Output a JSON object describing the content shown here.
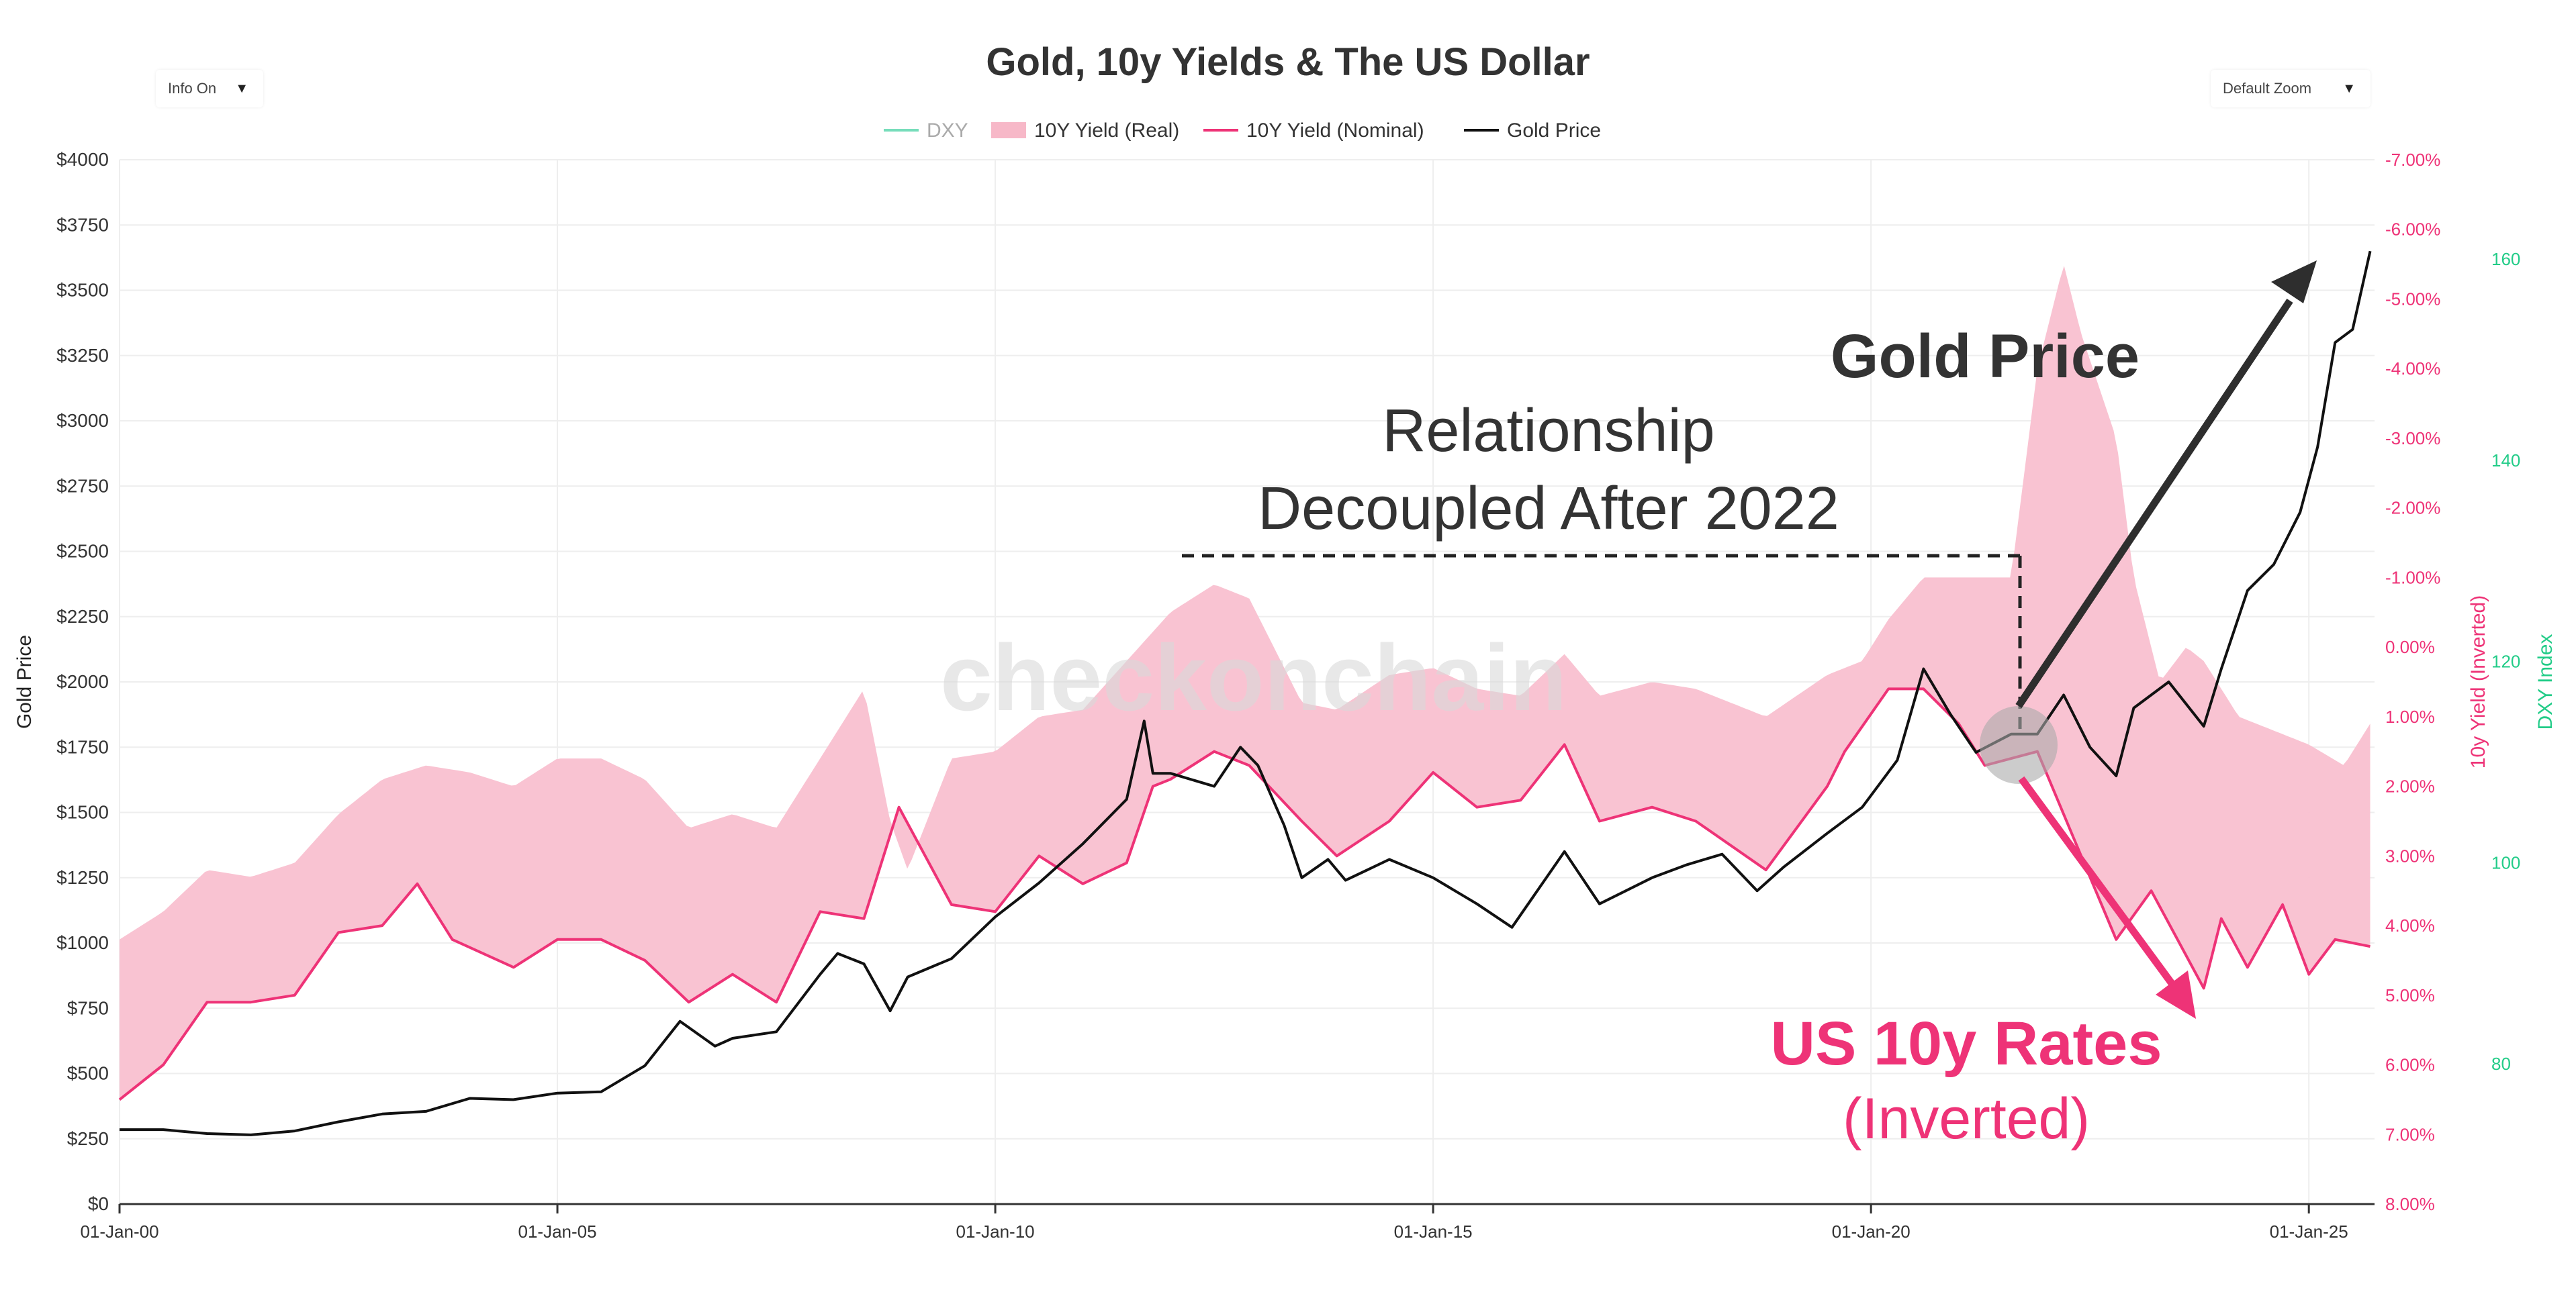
{
  "chart_data": {
    "type": "line",
    "title": "Gold, 10y Yields & The US Dollar",
    "controls": {
      "info_label": "Info On",
      "zoom_label": "Default Zoom"
    },
    "legend": {
      "placement": "top-center",
      "items": [
        {
          "name": "DXY",
          "color": "#77ddbb",
          "style": "line"
        },
        {
          "name": "10Y Yield (Real)",
          "color": "#f7b8c8",
          "style": "area"
        },
        {
          "name": "10Y Yield (Nominal)",
          "color": "#ee3377",
          "style": "line"
        },
        {
          "name": "Gold Price",
          "color": "#111111",
          "style": "line"
        }
      ]
    },
    "watermark": "checkonchain",
    "axes": {
      "x": {
        "ticks": [
          "01-Jan-00",
          "01-Jan-05",
          "01-Jan-10",
          "01-Jan-15",
          "01-Jan-20",
          "01-Jan-25"
        ],
        "tick_years": [
          2000,
          2005,
          2010,
          2015,
          2020,
          2025
        ],
        "range": [
          2000.0,
          2025.75
        ]
      },
      "y_left": {
        "label": "Gold Price",
        "range": [
          0,
          4000
        ],
        "ticks": [
          "$0",
          "$250",
          "$500",
          "$750",
          "$1000",
          "$1250",
          "$1500",
          "$1750",
          "$2000",
          "$2250",
          "$2500",
          "$2750",
          "$3000",
          "$3250",
          "$3500",
          "$3750",
          "$4000"
        ]
      },
      "y_right1": {
        "label": "10y Yield (Inverted)",
        "range": [
          8.0,
          -7.0
        ],
        "inverted": true,
        "ticks": [
          "8.00%",
          "7.00%",
          "6.00%",
          "5.00%",
          "4.00%",
          "3.00%",
          "2.00%",
          "1.00%",
          "0.00%",
          "-1.00%",
          "-2.00%",
          "-3.00%",
          "-4.00%",
          "-5.00%",
          "-6.00%",
          "-7.00%"
        ]
      },
      "y_right2": {
        "label": "DXY Index",
        "tick_values": [
          80,
          100,
          120,
          140,
          160
        ],
        "ticks": [
          "80",
          "100",
          "120",
          "140",
          "160"
        ]
      }
    },
    "series": [
      {
        "name": "Gold Price",
        "axis": "y_left",
        "points": [
          [
            2000.0,
            285
          ],
          [
            2000.5,
            285
          ],
          [
            2001.0,
            270
          ],
          [
            2001.5,
            265
          ],
          [
            2002.0,
            280
          ],
          [
            2002.5,
            315
          ],
          [
            2003.0,
            345
          ],
          [
            2003.5,
            355
          ],
          [
            2004.0,
            405
          ],
          [
            2004.5,
            400
          ],
          [
            2005.0,
            425
          ],
          [
            2005.5,
            430
          ],
          [
            2006.0,
            530
          ],
          [
            2006.4,
            700
          ],
          [
            2006.8,
            605
          ],
          [
            2007.0,
            635
          ],
          [
            2007.5,
            660
          ],
          [
            2008.0,
            880
          ],
          [
            2008.2,
            960
          ],
          [
            2008.5,
            920
          ],
          [
            2008.8,
            740
          ],
          [
            2009.0,
            870
          ],
          [
            2009.5,
            940
          ],
          [
            2010.0,
            1100
          ],
          [
            2010.5,
            1230
          ],
          [
            2011.0,
            1380
          ],
          [
            2011.5,
            1550
          ],
          [
            2011.7,
            1850
          ],
          [
            2011.8,
            1650
          ],
          [
            2012.0,
            1650
          ],
          [
            2012.5,
            1600
          ],
          [
            2012.8,
            1750
          ],
          [
            2013.0,
            1680
          ],
          [
            2013.3,
            1450
          ],
          [
            2013.5,
            1250
          ],
          [
            2013.8,
            1320
          ],
          [
            2014.0,
            1240
          ],
          [
            2014.5,
            1320
          ],
          [
            2015.0,
            1250
          ],
          [
            2015.5,
            1150
          ],
          [
            2015.9,
            1060
          ],
          [
            2016.5,
            1350
          ],
          [
            2016.9,
            1150
          ],
          [
            2017.5,
            1250
          ],
          [
            2017.9,
            1300
          ],
          [
            2018.3,
            1340
          ],
          [
            2018.7,
            1200
          ],
          [
            2019.0,
            1290
          ],
          [
            2019.5,
            1420
          ],
          [
            2019.9,
            1520
          ],
          [
            2020.3,
            1700
          ],
          [
            2020.6,
            2050
          ],
          [
            2020.9,
            1880
          ],
          [
            2021.2,
            1730
          ],
          [
            2021.6,
            1800
          ],
          [
            2021.9,
            1800
          ],
          [
            2022.2,
            1950
          ],
          [
            2022.5,
            1750
          ],
          [
            2022.8,
            1640
          ],
          [
            2023.0,
            1900
          ],
          [
            2023.4,
            2000
          ],
          [
            2023.8,
            1830
          ],
          [
            2024.0,
            2050
          ],
          [
            2024.3,
            2350
          ],
          [
            2024.6,
            2450
          ],
          [
            2024.9,
            2650
          ],
          [
            2025.1,
            2900
          ],
          [
            2025.3,
            3300
          ],
          [
            2025.5,
            3350
          ],
          [
            2025.7,
            3650
          ]
        ]
      },
      {
        "name": "10Y Yield (Nominal)",
        "axis": "y_right1",
        "points": [
          [
            2000.0,
            6.5
          ],
          [
            2000.5,
            6.0
          ],
          [
            2001.0,
            5.1
          ],
          [
            2001.5,
            5.1
          ],
          [
            2002.0,
            5.0
          ],
          [
            2002.5,
            4.1
          ],
          [
            2003.0,
            4.0
          ],
          [
            2003.4,
            3.4
          ],
          [
            2003.8,
            4.2
          ],
          [
            2004.5,
            4.6
          ],
          [
            2005.0,
            4.2
          ],
          [
            2005.5,
            4.2
          ],
          [
            2006.0,
            4.5
          ],
          [
            2006.5,
            5.1
          ],
          [
            2007.0,
            4.7
          ],
          [
            2007.5,
            5.1
          ],
          [
            2008.0,
            3.8
          ],
          [
            2008.5,
            3.9
          ],
          [
            2008.9,
            2.3
          ],
          [
            2009.5,
            3.7
          ],
          [
            2010.0,
            3.8
          ],
          [
            2010.5,
            3.0
          ],
          [
            2011.0,
            3.4
          ],
          [
            2011.5,
            3.1
          ],
          [
            2011.8,
            2.0
          ],
          [
            2012.0,
            1.9
          ],
          [
            2012.5,
            1.5
          ],
          [
            2012.9,
            1.7
          ],
          [
            2013.5,
            2.5
          ],
          [
            2013.9,
            3.0
          ],
          [
            2014.5,
            2.5
          ],
          [
            2015.0,
            1.8
          ],
          [
            2015.5,
            2.3
          ],
          [
            2016.0,
            2.2
          ],
          [
            2016.5,
            1.4
          ],
          [
            2016.9,
            2.5
          ],
          [
            2017.5,
            2.3
          ],
          [
            2018.0,
            2.5
          ],
          [
            2018.8,
            3.2
          ],
          [
            2019.5,
            2.0
          ],
          [
            2019.7,
            1.5
          ],
          [
            2020.2,
            0.6
          ],
          [
            2020.6,
            0.6
          ],
          [
            2021.0,
            1.1
          ],
          [
            2021.3,
            1.7
          ],
          [
            2021.9,
            1.5
          ],
          [
            2022.4,
            3.0
          ],
          [
            2022.8,
            4.2
          ],
          [
            2023.2,
            3.5
          ],
          [
            2023.8,
            4.9
          ],
          [
            2024.0,
            3.9
          ],
          [
            2024.3,
            4.6
          ],
          [
            2024.7,
            3.7
          ],
          [
            2025.0,
            4.7
          ],
          [
            2025.3,
            4.2
          ],
          [
            2025.7,
            4.3
          ]
        ]
      },
      {
        "name": "10Y Yield (Real)",
        "axis": "y_right1",
        "points": [
          [
            2000.0,
            4.2
          ],
          [
            2000.5,
            3.8
          ],
          [
            2001.0,
            3.2
          ],
          [
            2001.5,
            3.3
          ],
          [
            2002.0,
            3.1
          ],
          [
            2002.5,
            2.4
          ],
          [
            2003.0,
            1.9
          ],
          [
            2003.5,
            1.7
          ],
          [
            2004.0,
            1.8
          ],
          [
            2004.5,
            2.0
          ],
          [
            2005.0,
            1.6
          ],
          [
            2005.5,
            1.6
          ],
          [
            2006.0,
            1.9
          ],
          [
            2006.5,
            2.6
          ],
          [
            2007.0,
            2.4
          ],
          [
            2007.5,
            2.6
          ],
          [
            2008.0,
            1.6
          ],
          [
            2008.5,
            0.6
          ],
          [
            2008.8,
            2.5
          ],
          [
            2009.0,
            3.2
          ],
          [
            2009.5,
            1.6
          ],
          [
            2010.0,
            1.5
          ],
          [
            2010.5,
            1.0
          ],
          [
            2011.0,
            0.9
          ],
          [
            2011.5,
            0.2
          ],
          [
            2012.0,
            -0.5
          ],
          [
            2012.5,
            -0.9
          ],
          [
            2012.9,
            -0.7
          ],
          [
            2013.5,
            0.8
          ],
          [
            2013.9,
            0.9
          ],
          [
            2014.5,
            0.4
          ],
          [
            2015.0,
            0.3
          ],
          [
            2015.5,
            0.6
          ],
          [
            2016.0,
            0.7
          ],
          [
            2016.5,
            0.1
          ],
          [
            2016.9,
            0.7
          ],
          [
            2017.5,
            0.5
          ],
          [
            2018.0,
            0.6
          ],
          [
            2018.8,
            1.0
          ],
          [
            2019.5,
            0.4
          ],
          [
            2019.9,
            0.2
          ],
          [
            2020.2,
            -0.4
          ],
          [
            2020.6,
            -1.0
          ],
          [
            2021.0,
            -1.0
          ],
          [
            2021.6,
            -1.0
          ],
          [
            2021.9,
            -4.0
          ],
          [
            2022.2,
            -5.5
          ],
          [
            2022.4,
            -4.5
          ],
          [
            2022.8,
            -3.0
          ],
          [
            2023.0,
            -1.0
          ],
          [
            2023.3,
            0.5
          ],
          [
            2023.6,
            0.0
          ],
          [
            2023.8,
            0.2
          ],
          [
            2024.2,
            1.0
          ],
          [
            2024.6,
            1.2
          ],
          [
            2025.0,
            1.4
          ],
          [
            2025.4,
            1.7
          ],
          [
            2025.7,
            1.1
          ]
        ]
      }
    ],
    "annotations": [
      {
        "text": "Relationship",
        "kind": "label"
      },
      {
        "text": "Decoupled After 2022",
        "kind": "label"
      },
      {
        "text": "Gold Price",
        "kind": "label"
      },
      {
        "text": "US 10y Rates",
        "kind": "label"
      },
      {
        "text": "(Inverted)",
        "kind": "label"
      }
    ],
    "grid": true
  }
}
